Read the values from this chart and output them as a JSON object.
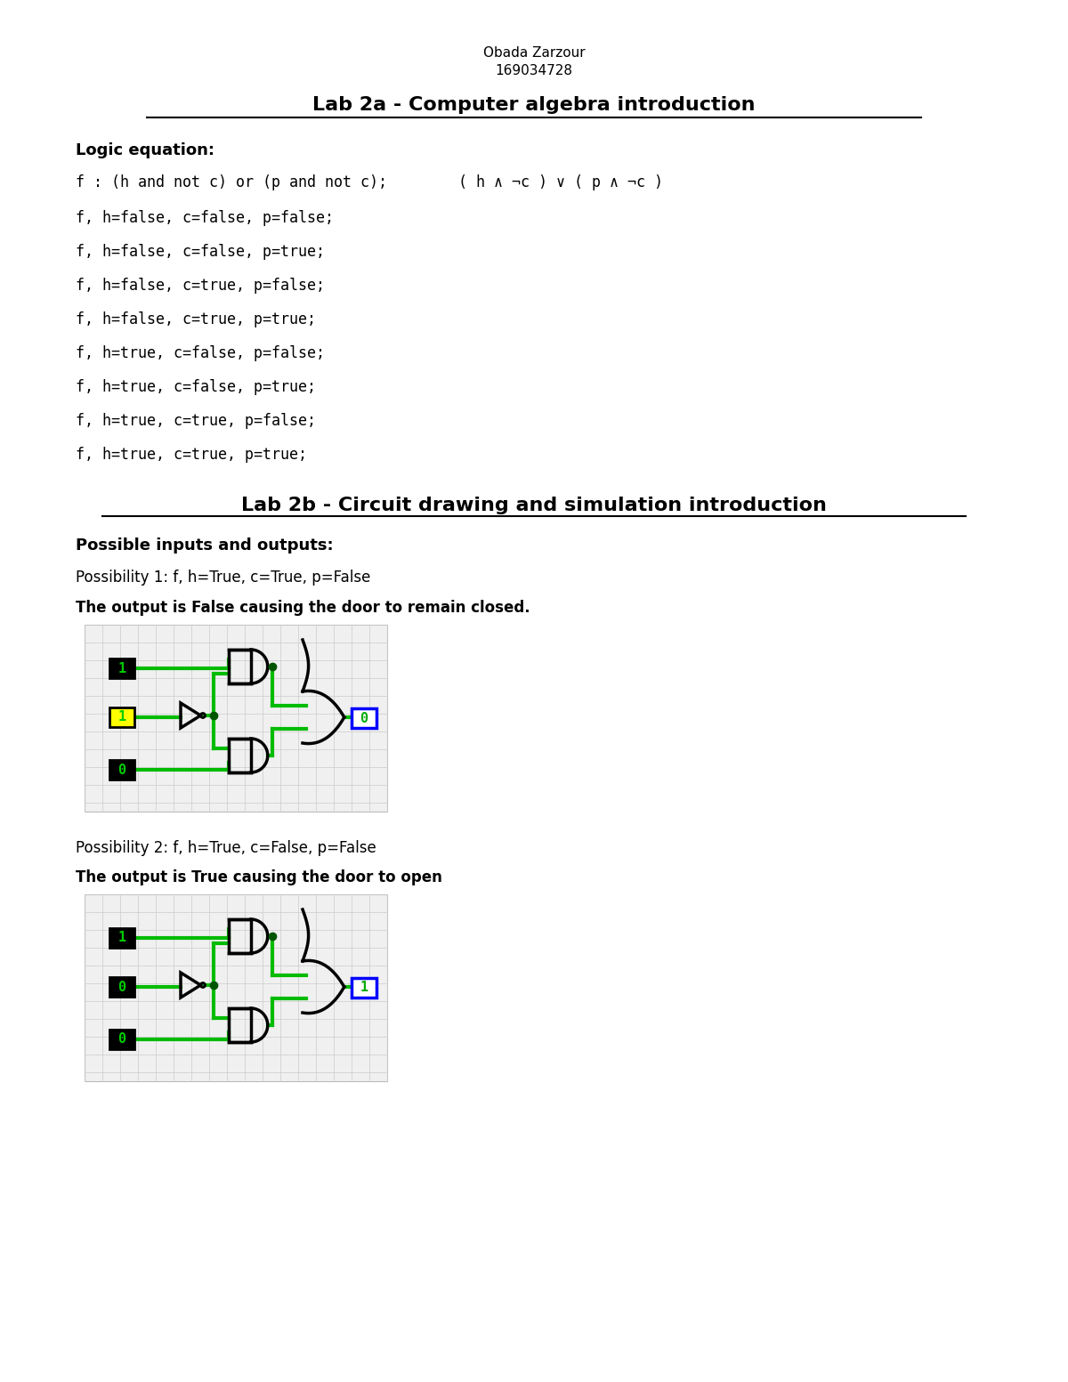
{
  "bg_color": "#ffffff",
  "header_name": "Obada Zarzour",
  "header_id": "169034728",
  "title_2a": "Lab 2a - Computer algebra introduction",
  "title_2b": "Lab 2b - Circuit drawing and simulation introduction",
  "logic_eq_label": "Logic equation:",
  "eq_line": "f : (h and not c) or (p and not c);        ( h ∧ ¬c ) ∨ ( p ∧ ¬c )",
  "truth_table": [
    "f, h=false, c=false, p=false;",
    "f, h=false, c=false, p=true;",
    "f, h=false, c=true, p=false;",
    "f, h=false, c=true, p=true;",
    "f, h=true, c=false, p=false;",
    "f, h=true, c=false, p=true;",
    "f, h=true, c=true, p=false;",
    "f, h=true, c=true, p=true;"
  ],
  "possible_io_label": "Possible inputs and outputs:",
  "poss1_label": "Possibility 1: f, h=True, c=True, p=False",
  "poss1_desc": "The output is False causing the door to remain closed.",
  "poss2_label": "Possibility 2: f, h=True, c=False, p=False",
  "poss2_desc": "The output is True causing the door to open"
}
